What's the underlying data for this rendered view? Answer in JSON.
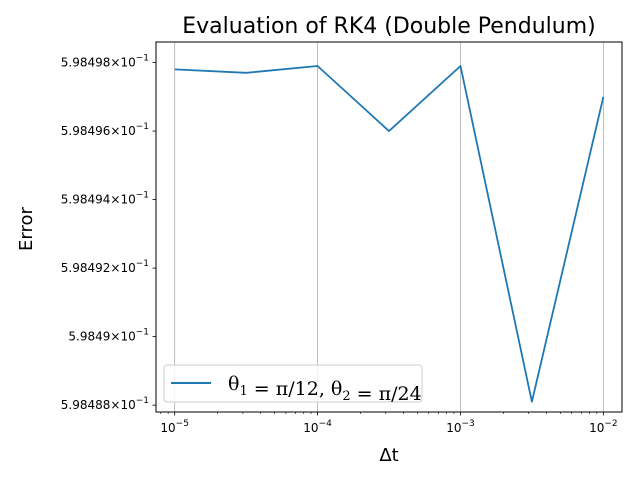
{
  "chart_data": {
    "type": "line",
    "title": "Evaluation of RK4 (Double Pendulum)",
    "xlabel": "Δt",
    "ylabel": "Error",
    "x_scale": "log",
    "y_scale": "log",
    "xlim": [
      7.4e-06,
      0.0135
    ],
    "ylim": [
      0.5984878,
      0.5984986
    ],
    "grid": "x-major",
    "legend_position": "lower-left",
    "x_ticks": [
      {
        "value": 1e-05,
        "base": "10",
        "exp": "−5"
      },
      {
        "value": 0.0001,
        "base": "10",
        "exp": "−4"
      },
      {
        "value": 0.001,
        "base": "10",
        "exp": "−3"
      },
      {
        "value": 0.01,
        "base": "10",
        "exp": "−2"
      }
    ],
    "y_ticks": [
      {
        "value": 0.598498,
        "mantissa": "5.98498",
        "exp": "−1"
      },
      {
        "value": 0.598496,
        "mantissa": "5.98496",
        "exp": "−1"
      },
      {
        "value": 0.598494,
        "mantissa": "5.98494",
        "exp": "−1"
      },
      {
        "value": 0.598492,
        "mantissa": "5.98492",
        "exp": "−1"
      },
      {
        "value": 0.59849,
        "mantissa": "5.9849",
        "exp": "−1"
      },
      {
        "value": 0.598488,
        "mantissa": "5.98488",
        "exp": "−1"
      }
    ],
    "series": [
      {
        "name": "θ1 = π/12, θ2 = π/24",
        "color": "#1f77b4",
        "x": [
          1e-05,
          3.16e-05,
          0.0001,
          0.000316,
          0.001,
          0.00316,
          0.01
        ],
        "y": [
          0.5984978,
          0.5984977,
          0.5984979,
          0.598496,
          0.5984979,
          0.5984881,
          0.598497
        ]
      }
    ]
  }
}
